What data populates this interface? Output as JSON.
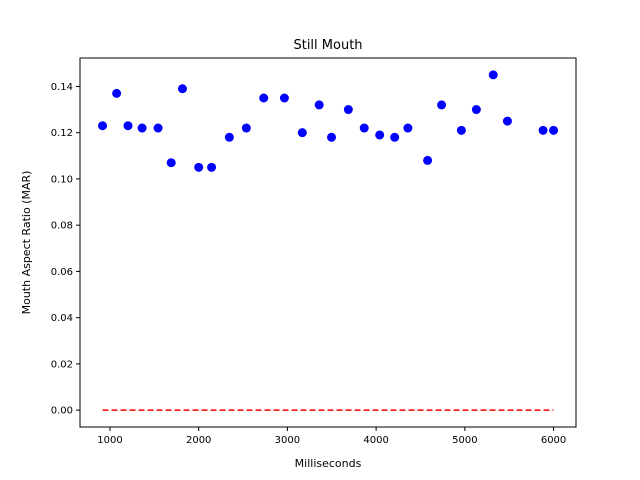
{
  "chart_data": {
    "type": "scatter",
    "title": "Still Mouth",
    "xlabel": "Milliseconds",
    "ylabel": "Mouth Aspect Ratio (MAR)",
    "xlim": [
      662,
      6253
    ],
    "ylim": [
      -0.0073,
      0.1523
    ],
    "xticks": [
      1000,
      2000,
      3000,
      4000,
      5000,
      6000
    ],
    "yticks": [
      0.0,
      0.02,
      0.04,
      0.06,
      0.08,
      0.1,
      0.12,
      0.14
    ],
    "grid": false,
    "legend": "none",
    "series": [
      {
        "marker": "circle",
        "color": "#0000ff",
        "x": [
          916,
          1075,
          1203,
          1362,
          1542,
          1690,
          1817,
          2000,
          2145,
          2346,
          2537,
          2733,
          2966,
          3168,
          3358,
          3497,
          3687,
          3866,
          4040,
          4209,
          4358,
          4580,
          4738,
          4961,
          5130,
          5320,
          5480,
          5882,
          6000
        ],
        "y": [
          0.123,
          0.137,
          0.123,
          0.122,
          0.122,
          0.107,
          0.139,
          0.105,
          0.105,
          0.118,
          0.122,
          0.135,
          0.135,
          0.12,
          0.132,
          0.118,
          0.13,
          0.122,
          0.119,
          0.118,
          0.122,
          0.108,
          0.132,
          0.121,
          0.13,
          0.145,
          0.125,
          0.121,
          0.121
        ]
      },
      {
        "marker": "line",
        "style": "dashed",
        "color": "#ff0000",
        "x": [
          916,
          6000
        ],
        "y": [
          0.0,
          0.0
        ]
      }
    ]
  }
}
